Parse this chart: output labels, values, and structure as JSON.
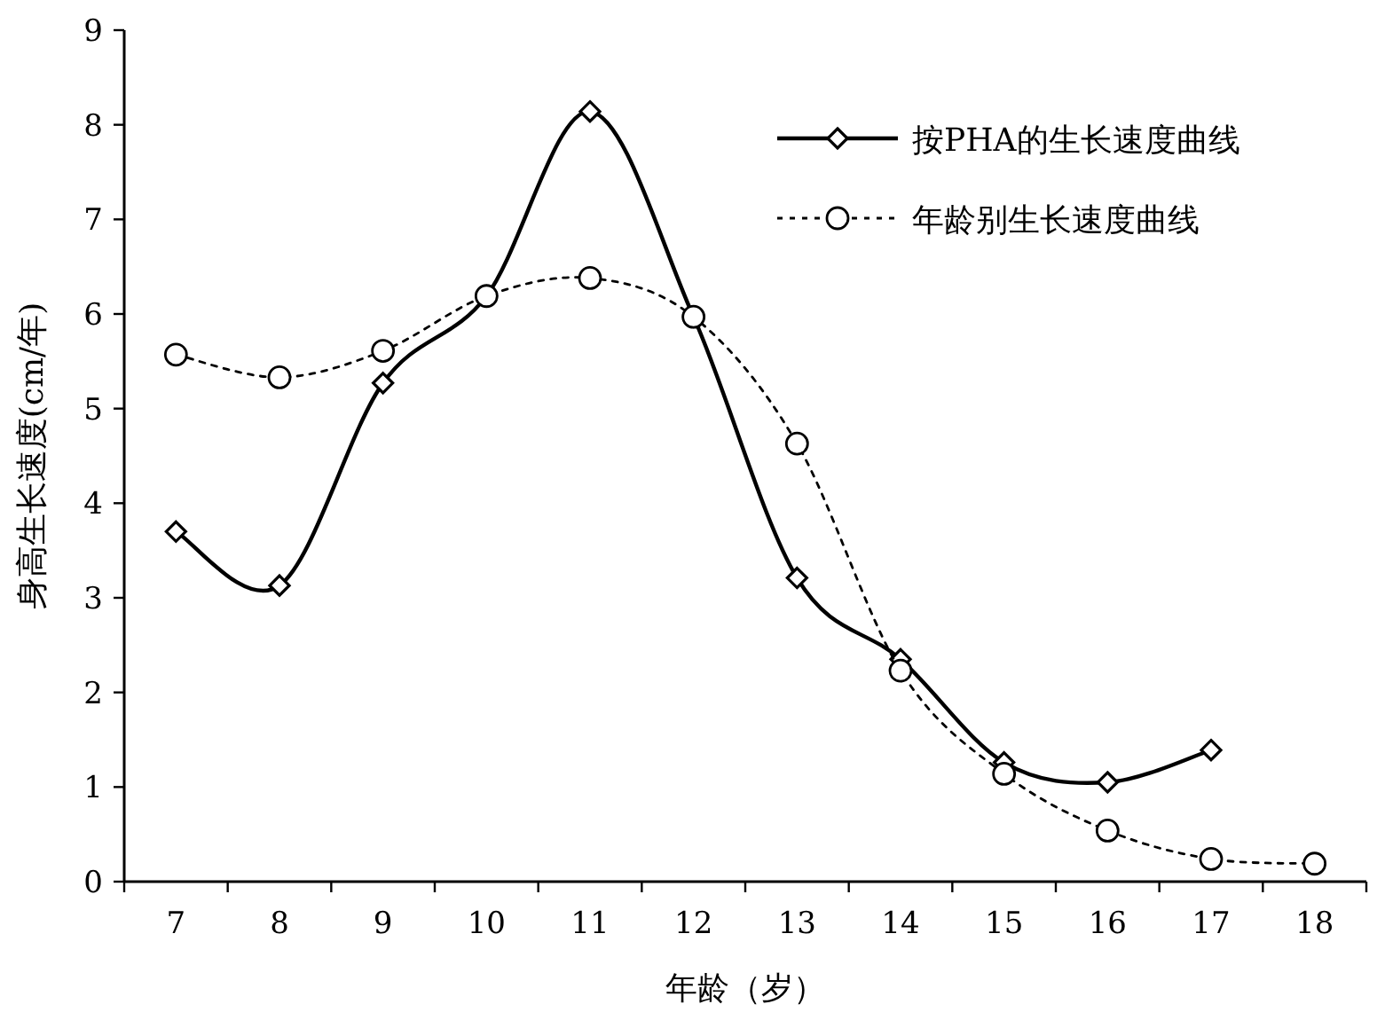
{
  "chart_data": {
    "type": "line",
    "xlabel": "年龄（岁）",
    "ylabel": "身高生长速度(cm/年)",
    "categories": [
      "7",
      "8",
      "9",
      "10",
      "11",
      "12",
      "13",
      "14",
      "15",
      "16",
      "17",
      "18"
    ],
    "series": [
      {
        "name": "按PHA的生长速度曲线",
        "color": "#000000",
        "marker": "diamond",
        "line_style": "solid",
        "values": [
          3.7,
          3.13,
          5.27,
          6.19,
          8.14,
          5.97,
          3.21,
          2.35,
          1.26,
          1.05,
          1.39,
          null
        ]
      },
      {
        "name": "年龄别生长速度曲线",
        "color": "#000000",
        "marker": "circle",
        "line_style": "dotted",
        "values": [
          5.57,
          5.33,
          5.61,
          6.19,
          6.38,
          5.97,
          4.63,
          2.23,
          1.14,
          0.54,
          0.24,
          0.19
        ]
      }
    ],
    "ylim": [
      0,
      9
    ],
    "yticks": [
      0,
      1,
      2,
      3,
      4,
      5,
      6,
      7,
      8,
      9
    ],
    "grid": false,
    "legend": "top right"
  }
}
